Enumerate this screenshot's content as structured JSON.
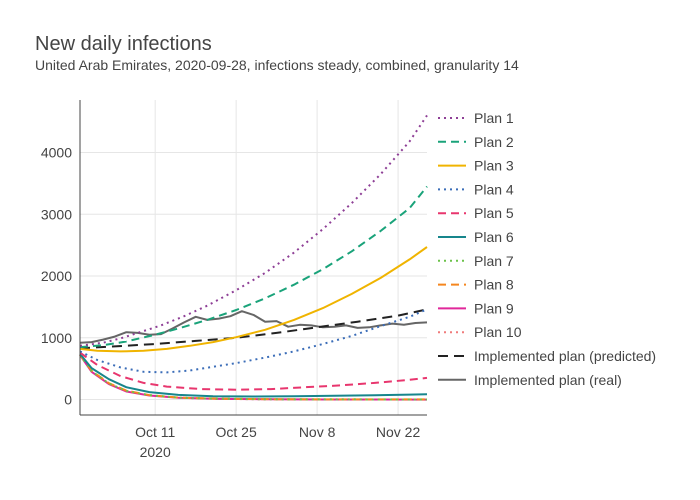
{
  "chart_data": {
    "type": "line",
    "title": "New daily infections",
    "subtitle": "United Arab Emirates, 2020-09-28, infections steady, combined, granularity 14",
    "xlabel": "",
    "ylabel": "",
    "x_range": [
      "2020-09-28",
      "2020-11-27"
    ],
    "ylim": [
      -250,
      4850
    ],
    "x_ticks": [
      {
        "date": "2020-10-11",
        "label": "Oct 11",
        "sublabel": "2020"
      },
      {
        "date": "2020-10-25",
        "label": "Oct 25",
        "sublabel": ""
      },
      {
        "date": "2020-11-08",
        "label": "Nov 8",
        "sublabel": ""
      },
      {
        "date": "2020-11-22",
        "label": "Nov 22",
        "sublabel": ""
      }
    ],
    "y_ticks": [
      0,
      1000,
      2000,
      3000,
      4000
    ],
    "y_tick_labels": [
      "0",
      "1000",
      "2000",
      "3000",
      "4000"
    ],
    "grid": true,
    "legend_position": "right",
    "series": [
      {
        "name": "Plan 1",
        "color": "#8e3f96",
        "dash": "dot",
        "points": [
          [
            "2020-09-28",
            870
          ],
          [
            "2020-10-02",
            920
          ],
          [
            "2020-10-05",
            990
          ],
          [
            "2020-10-08",
            1080
          ],
          [
            "2020-10-12",
            1200
          ],
          [
            "2020-10-16",
            1350
          ],
          [
            "2020-10-20",
            1520
          ],
          [
            "2020-10-25",
            1770
          ],
          [
            "2020-10-30",
            2050
          ],
          [
            "2020-11-04",
            2380
          ],
          [
            "2020-11-09",
            2760
          ],
          [
            "2020-11-14",
            3180
          ],
          [
            "2020-11-19",
            3650
          ],
          [
            "2020-11-24",
            4180
          ],
          [
            "2020-11-27",
            4600
          ]
        ]
      },
      {
        "name": "Plan 2",
        "color": "#1aa37a",
        "dash": "dash",
        "points": [
          [
            "2020-09-28",
            850
          ],
          [
            "2020-10-02",
            880
          ],
          [
            "2020-10-06",
            940
          ],
          [
            "2020-10-11",
            1050
          ],
          [
            "2020-10-15",
            1150
          ],
          [
            "2020-10-20",
            1290
          ],
          [
            "2020-10-25",
            1450
          ],
          [
            "2020-10-30",
            1640
          ],
          [
            "2020-11-04",
            1860
          ],
          [
            "2020-11-09",
            2110
          ],
          [
            "2020-11-14",
            2400
          ],
          [
            "2020-11-19",
            2730
          ],
          [
            "2020-11-24",
            3100
          ],
          [
            "2020-11-27",
            3450
          ]
        ]
      },
      {
        "name": "Plan 3",
        "color": "#f0b400",
        "dash": "solid",
        "points": [
          [
            "2020-09-28",
            820
          ],
          [
            "2020-10-01",
            790
          ],
          [
            "2020-10-05",
            780
          ],
          [
            "2020-10-09",
            790
          ],
          [
            "2020-10-13",
            820
          ],
          [
            "2020-10-17",
            870
          ],
          [
            "2020-10-21",
            930
          ],
          [
            "2020-10-25",
            1010
          ],
          [
            "2020-10-30",
            1130
          ],
          [
            "2020-11-04",
            1290
          ],
          [
            "2020-11-09",
            1480
          ],
          [
            "2020-11-14",
            1710
          ],
          [
            "2020-11-19",
            1970
          ],
          [
            "2020-11-24",
            2270
          ],
          [
            "2020-11-27",
            2470
          ]
        ]
      },
      {
        "name": "Plan 4",
        "color": "#3b6db8",
        "dash": "dot",
        "points": [
          [
            "2020-09-28",
            780
          ],
          [
            "2020-10-01",
            640
          ],
          [
            "2020-10-05",
            520
          ],
          [
            "2020-10-09",
            450
          ],
          [
            "2020-10-13",
            440
          ],
          [
            "2020-10-17",
            470
          ],
          [
            "2020-10-21",
            530
          ],
          [
            "2020-10-25",
            590
          ],
          [
            "2020-10-30",
            680
          ],
          [
            "2020-11-04",
            780
          ],
          [
            "2020-11-09",
            900
          ],
          [
            "2020-11-14",
            1030
          ],
          [
            "2020-11-19",
            1190
          ],
          [
            "2020-11-24",
            1340
          ],
          [
            "2020-11-27",
            1460
          ]
        ]
      },
      {
        "name": "Plan 5",
        "color": "#e8366e",
        "dash": "dash",
        "points": [
          [
            "2020-09-28",
            760
          ],
          [
            "2020-10-01",
            560
          ],
          [
            "2020-10-05",
            380
          ],
          [
            "2020-10-09",
            270
          ],
          [
            "2020-10-13",
            210
          ],
          [
            "2020-10-19",
            170
          ],
          [
            "2020-10-25",
            160
          ],
          [
            "2020-10-31",
            170
          ],
          [
            "2020-11-06",
            200
          ],
          [
            "2020-11-12",
            230
          ],
          [
            "2020-11-18",
            270
          ],
          [
            "2020-11-24",
            320
          ],
          [
            "2020-11-27",
            350
          ]
        ]
      },
      {
        "name": "Plan 6",
        "color": "#17868c",
        "dash": "solid",
        "points": [
          [
            "2020-09-28",
            740
          ],
          [
            "2020-09-30",
            510
          ],
          [
            "2020-10-03",
            330
          ],
          [
            "2020-10-06",
            200
          ],
          [
            "2020-10-10",
            120
          ],
          [
            "2020-10-15",
            75
          ],
          [
            "2020-10-21",
            55
          ],
          [
            "2020-10-28",
            50
          ],
          [
            "2020-11-04",
            55
          ],
          [
            "2020-11-11",
            62
          ],
          [
            "2020-11-18",
            70
          ],
          [
            "2020-11-24",
            80
          ],
          [
            "2020-11-27",
            85
          ]
        ]
      },
      {
        "name": "Plan 7",
        "color": "#6cc24a",
        "dash": "dot",
        "points": [
          [
            "2020-09-28",
            720
          ],
          [
            "2020-09-30",
            460
          ],
          [
            "2020-10-03",
            260
          ],
          [
            "2020-10-06",
            140
          ],
          [
            "2020-10-10",
            70
          ],
          [
            "2020-10-15",
            30
          ],
          [
            "2020-10-22",
            12
          ],
          [
            "2020-10-31",
            5
          ],
          [
            "2020-11-10",
            2
          ],
          [
            "2020-11-27",
            1
          ]
        ]
      },
      {
        "name": "Plan 8",
        "color": "#f5861f",
        "dash": "dash",
        "points": [
          [
            "2020-09-28",
            725
          ],
          [
            "2020-09-30",
            465
          ],
          [
            "2020-10-03",
            265
          ],
          [
            "2020-10-06",
            145
          ],
          [
            "2020-10-10",
            72
          ],
          [
            "2020-10-15",
            32
          ],
          [
            "2020-10-22",
            14
          ],
          [
            "2020-10-31",
            6
          ],
          [
            "2020-11-10",
            3
          ],
          [
            "2020-11-27",
            2
          ]
        ]
      },
      {
        "name": "Plan 9",
        "color": "#e0289a",
        "dash": "solid",
        "points": [
          [
            "2020-09-28",
            720
          ],
          [
            "2020-09-30",
            450
          ],
          [
            "2020-10-03",
            250
          ],
          [
            "2020-10-06",
            130
          ],
          [
            "2020-10-10",
            65
          ],
          [
            "2020-10-15",
            28
          ],
          [
            "2020-10-22",
            10
          ],
          [
            "2020-10-31",
            4
          ],
          [
            "2020-11-10",
            1
          ],
          [
            "2020-11-27",
            0
          ]
        ]
      },
      {
        "name": "Plan 10",
        "color": "#f07b7b",
        "dash": "dot",
        "points": [
          [
            "2020-09-28",
            722
          ],
          [
            "2020-09-30",
            455
          ],
          [
            "2020-10-03",
            255
          ],
          [
            "2020-10-06",
            135
          ],
          [
            "2020-10-10",
            68
          ],
          [
            "2020-10-15",
            30
          ],
          [
            "2020-10-22",
            11
          ],
          [
            "2020-10-31",
            5
          ],
          [
            "2020-11-10",
            2
          ],
          [
            "2020-11-27",
            1
          ]
        ]
      },
      {
        "name": "Implemented plan (predicted)",
        "color": "#222222",
        "dash": "longdash",
        "points": [
          [
            "2020-09-28",
            830
          ],
          [
            "2020-10-04",
            860
          ],
          [
            "2020-10-11",
            900
          ],
          [
            "2020-10-18",
            950
          ],
          [
            "2020-10-25",
            1000
          ],
          [
            "2020-11-01",
            1080
          ],
          [
            "2020-11-08",
            1170
          ],
          [
            "2020-11-15",
            1260
          ],
          [
            "2020-11-22",
            1360
          ],
          [
            "2020-11-27",
            1460
          ]
        ]
      },
      {
        "name": "Implemented plan (real)",
        "color": "#666666",
        "dash": "solid",
        "points": [
          [
            "2020-09-28",
            920
          ],
          [
            "2020-09-30",
            930
          ],
          [
            "2020-10-02",
            970
          ],
          [
            "2020-10-04",
            1020
          ],
          [
            "2020-10-06",
            1090
          ],
          [
            "2020-10-08",
            1080
          ],
          [
            "2020-10-10",
            1050
          ],
          [
            "2020-10-12",
            1060
          ],
          [
            "2020-10-14",
            1150
          ],
          [
            "2020-10-16",
            1250
          ],
          [
            "2020-10-18",
            1340
          ],
          [
            "2020-10-20",
            1290
          ],
          [
            "2020-10-22",
            1310
          ],
          [
            "2020-10-24",
            1350
          ],
          [
            "2020-10-26",
            1430
          ],
          [
            "2020-10-28",
            1370
          ],
          [
            "2020-10-30",
            1260
          ],
          [
            "2020-11-01",
            1270
          ],
          [
            "2020-11-03",
            1180
          ],
          [
            "2020-11-05",
            1210
          ],
          [
            "2020-11-07",
            1200
          ],
          [
            "2020-11-09",
            1170
          ],
          [
            "2020-11-11",
            1180
          ],
          [
            "2020-11-13",
            1200
          ],
          [
            "2020-11-15",
            1160
          ],
          [
            "2020-11-17",
            1170
          ],
          [
            "2020-11-19",
            1200
          ],
          [
            "2020-11-21",
            1230
          ],
          [
            "2020-11-23",
            1210
          ],
          [
            "2020-11-25",
            1240
          ],
          [
            "2020-11-27",
            1250
          ]
        ]
      }
    ]
  }
}
